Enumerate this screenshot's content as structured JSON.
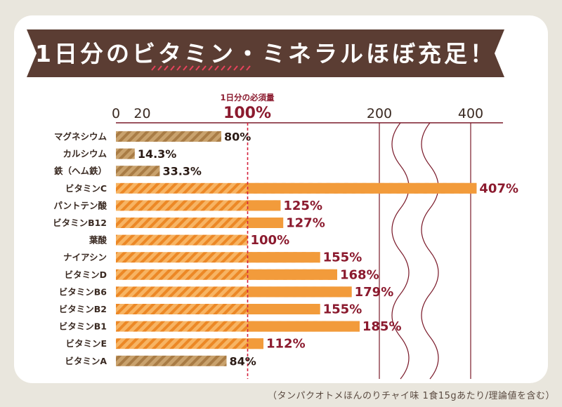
{
  "banner": {
    "title": "1日分のビタミン・ミネラルほぼ充足！"
  },
  "reference": {
    "label": "1日分の必須量",
    "value_text": "100%"
  },
  "footnote": "（タンパクオトメほんのりチャイ味 1食15gあたり/理論値を含む）",
  "colors": {
    "banner": "#5b3d33",
    "accent_stripe": "#e8425c",
    "below_100": "#b98f5a",
    "above_100": "#f29b3b",
    "label_over": "#8b1a2e",
    "axis_line": "#7a1a2a",
    "reference_line": "#d4223c"
  },
  "chart_data": {
    "type": "bar",
    "orientation": "horizontal",
    "unit": "%",
    "xlim": [
      0,
      420
    ],
    "xticks": [
      0,
      20,
      100,
      200,
      400
    ],
    "axis_break": "between 200 and 400",
    "reference_line": 100,
    "categories": [
      "マグネシウム",
      "カルシウム",
      "鉄（ヘム鉄）",
      "ビタミンC",
      "パントテン酸",
      "ビタミンB12",
      "葉酸",
      "ナイアシン",
      "ビタミンD",
      "ビタミンB6",
      "ビタミンB2",
      "ビタミンB1",
      "ビタミンE",
      "ビタミンA"
    ],
    "values": [
      80,
      14.3,
      33.3,
      407,
      125,
      127,
      100,
      155,
      168,
      179,
      155,
      185,
      112,
      84
    ],
    "value_labels": [
      "80%",
      "14.3%",
      "33.3%",
      "407%",
      "125%",
      "127%",
      "100%",
      "155%",
      "168%",
      "179%",
      "155%",
      "185%",
      "112%",
      "84%"
    ]
  }
}
